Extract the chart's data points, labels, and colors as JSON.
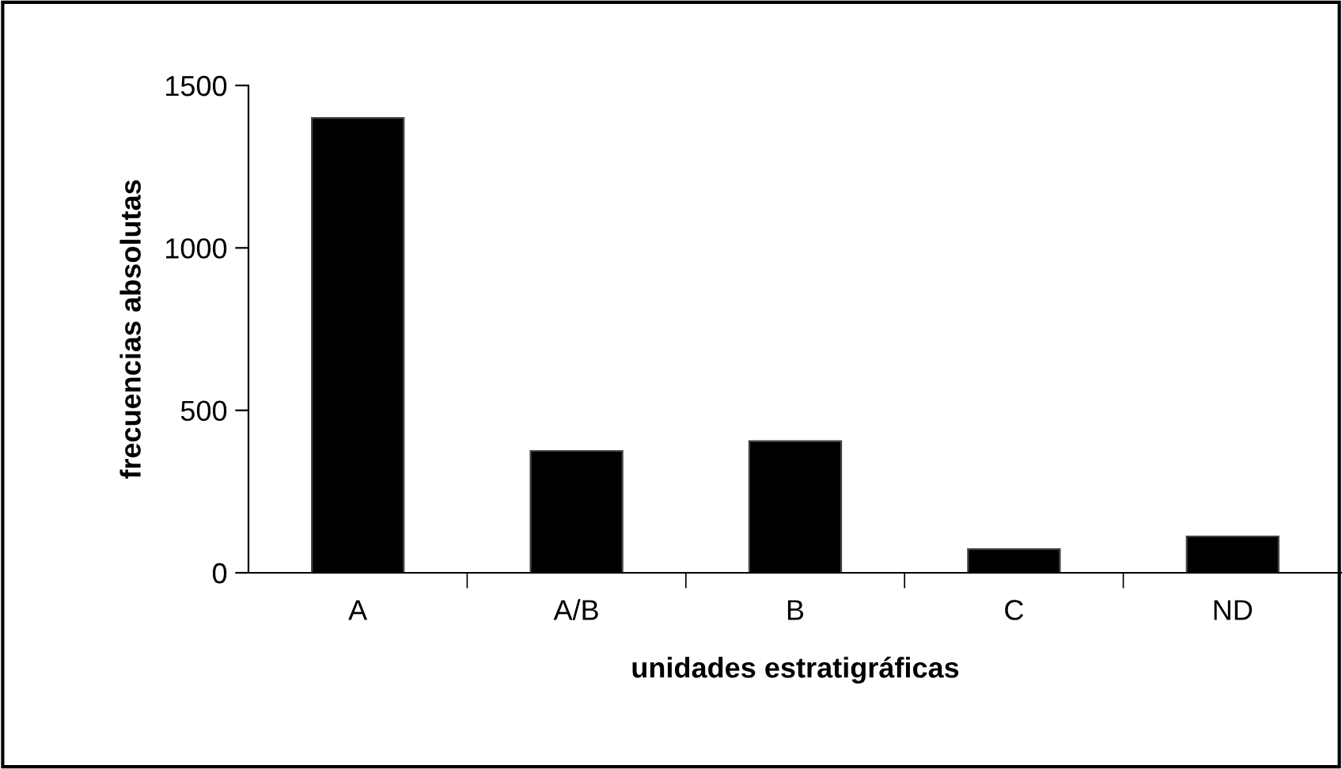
{
  "chart_data": {
    "type": "bar",
    "xlabel": "unidades estratigráficas",
    "ylabel": "frecuencias absolutas",
    "categories": [
      "A",
      "A/B",
      "B",
      "C",
      "ND"
    ],
    "values": [
      1400,
      375,
      405,
      73,
      112
    ],
    "color": "#000000",
    "ylim": [
      0,
      1500
    ],
    "yticks": [
      0,
      500,
      1000,
      1500
    ],
    "grid": false,
    "legend": false
  }
}
